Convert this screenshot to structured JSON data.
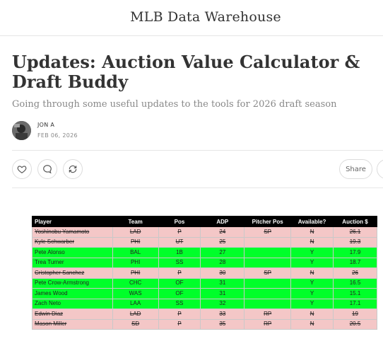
{
  "site": {
    "title": "MLB Data Warehouse"
  },
  "post": {
    "title": "Updates: Auction Value Calculator & Draft Buddy",
    "subtitle": "Going through some useful updates to the tools for 2026 draft season",
    "author": "JON A",
    "date": "FEB 06, 2026"
  },
  "actions": {
    "share_label": "Share"
  },
  "icons": {
    "like": "heart-icon",
    "comment": "comment-icon",
    "restack": "restack-icon"
  },
  "table": {
    "headers": [
      "Player",
      "Team",
      "Pos",
      "ADP",
      "Pitcher Pos",
      "Available?",
      "Auction $"
    ],
    "rows": [
      [
        "Yoshinobu Yamamoto",
        "LAD",
        "P",
        "24",
        "SP",
        "N",
        "26.1"
      ],
      [
        "Kyle Schwarber",
        "PHI",
        "UT",
        "25",
        "",
        "N",
        "19.3"
      ],
      [
        "Pete Alonso",
        "BAL",
        "1B",
        "27",
        "",
        "Y",
        "17.9"
      ],
      [
        "Trea Turner",
        "PHI",
        "SS",
        "28",
        "",
        "Y",
        "18.7"
      ],
      [
        "Cristopher Sanchez",
        "PHI",
        "P",
        "30",
        "SP",
        "N",
        "26"
      ],
      [
        "Pete Crow-Armstrong",
        "CHC",
        "OF",
        "31",
        "",
        "Y",
        "16.5"
      ],
      [
        "James Wood",
        "WAS",
        "OF",
        "31",
        "",
        "Y",
        "15.1"
      ],
      [
        "Zach Neto",
        "LAA",
        "SS",
        "32",
        "",
        "Y",
        "17.1"
      ],
      [
        "Edwin Diaz",
        "LAD",
        "P",
        "33",
        "RP",
        "N",
        "19"
      ],
      [
        "Mason Miller",
        "SD",
        "P",
        "35",
        "RP",
        "N",
        "20.5"
      ]
    ]
  },
  "colors": {
    "available": "#00ff2a",
    "unavailable": "#f4c7c7",
    "header_bg": "#000000"
  }
}
